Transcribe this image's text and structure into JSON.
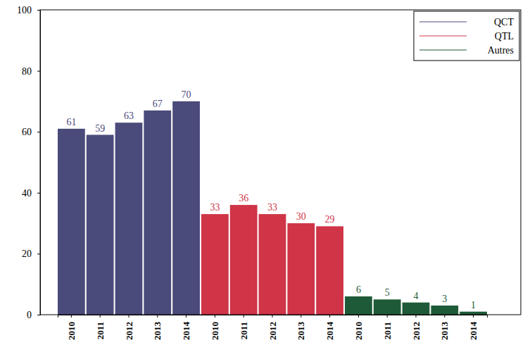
{
  "chart_data": {
    "type": "bar",
    "categories": [
      "2010",
      "2011",
      "2012",
      "2013",
      "2014",
      "2010",
      "2011",
      "2012",
      "2013",
      "2014",
      "2010",
      "2011",
      "2012",
      "2013",
      "2014"
    ],
    "series": [
      {
        "name": "QCT",
        "color": "#4a4a7b",
        "values": [
          61,
          59,
          63,
          67,
          70,
          null,
          null,
          null,
          null,
          null,
          null,
          null,
          null,
          null,
          null
        ]
      },
      {
        "name": "QTL",
        "color": "#cf3447",
        "values": [
          null,
          null,
          null,
          null,
          null,
          33,
          36,
          33,
          30,
          29,
          null,
          null,
          null,
          null,
          null
        ]
      },
      {
        "name": "Autres",
        "color": "#1e5a37",
        "values": [
          null,
          null,
          null,
          null,
          null,
          null,
          null,
          null,
          null,
          null,
          6,
          5,
          4,
          3,
          1
        ]
      }
    ],
    "ylim": [
      0,
      100
    ],
    "yticks": [
      0,
      20,
      40,
      60,
      80,
      100
    ],
    "grid": false,
    "legend": "upper right",
    "data_labels": true
  }
}
